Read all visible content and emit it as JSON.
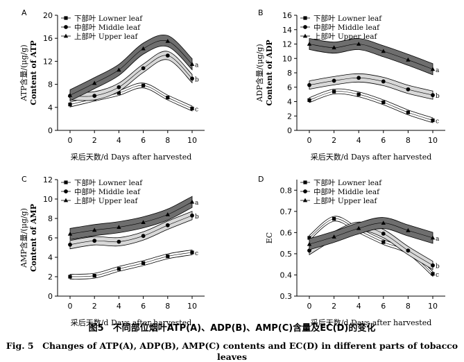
{
  "figure": {
    "caption_cn": "图5　不同部位烟叶ATP(A)、ADP(B)、AMP(C)含量及EC(D)的变化",
    "caption_en": "Fig. 5　Changes of ATP(A), ADP(B), AMP(C) contents and EC(D) in different parts of tobacco leaves"
  },
  "chart_data": [
    {
      "type": "line",
      "panel": "A",
      "xlabel": "采后天数/d Days after harvested",
      "ylabel": [
        "ATP含量/(μg/g)",
        "Content of ATP"
      ],
      "x": [
        0,
        2,
        4,
        6,
        8,
        10
      ],
      "xticks": [
        "0",
        "2",
        "4",
        "6",
        "8",
        "10"
      ],
      "ylim": [
        0,
        20
      ],
      "yticks": [
        "0",
        "4",
        "8",
        "12",
        "16",
        "20"
      ],
      "grid": false,
      "legend_position": "top-left",
      "series": [
        {
          "name": "下部叶 Lowner leaf",
          "marker": "square",
          "label": "c",
          "color": "#ffffff",
          "values": [
            4.5,
            5.5,
            6.5,
            7.8,
            5.7,
            3.8
          ]
        },
        {
          "name": "中部叶 Middle leaf",
          "marker": "circle",
          "label": "b",
          "color": "#d8d8d8",
          "values": [
            6.0,
            6.0,
            7.5,
            10.8,
            13.0,
            9.0
          ]
        },
        {
          "name": "上部叶 Upper leaf",
          "marker": "triangle",
          "label": "a",
          "color": "#6e6e6e",
          "values": [
            6.1,
            8.2,
            10.5,
            14.2,
            15.5,
            11.5
          ]
        }
      ]
    },
    {
      "type": "line",
      "panel": "B",
      "xlabel": "采后天数/d Days after harvested",
      "ylabel": [
        "ADP含量/(μg/g)",
        "Content of ADP"
      ],
      "x": [
        0,
        2,
        4,
        6,
        8,
        10
      ],
      "xticks": [
        "0",
        "2",
        "4",
        "6",
        "8",
        "10"
      ],
      "ylim": [
        0,
        16
      ],
      "yticks": [
        "0",
        "2",
        "4",
        "6",
        "8",
        "10",
        "12",
        "14",
        "16"
      ],
      "grid": false,
      "legend_position": "top-left",
      "series": [
        {
          "name": "下部叶 Lowner leaf",
          "marker": "square",
          "label": "c",
          "color": "#ffffff",
          "values": [
            4.2,
            5.4,
            5.0,
            3.9,
            2.5,
            1.4
          ]
        },
        {
          "name": "中部叶 Middle leaf",
          "marker": "circle",
          "label": "b",
          "color": "#d8d8d8",
          "values": [
            6.3,
            6.9,
            7.3,
            6.8,
            5.7,
            4.9
          ]
        },
        {
          "name": "上部叶 Upper leaf",
          "marker": "triangle",
          "label": "a",
          "color": "#6e6e6e",
          "values": [
            12.0,
            11.5,
            12.0,
            11.0,
            9.8,
            8.5
          ]
        }
      ]
    },
    {
      "type": "line",
      "panel": "C",
      "xlabel": "采后天数/d Days after harvested",
      "ylabel": [
        "AMP含量/(μg/g)",
        "Content of AMP"
      ],
      "x": [
        0,
        2,
        4,
        6,
        8,
        10
      ],
      "xticks": [
        "0",
        "2",
        "4",
        "6",
        "8",
        "10"
      ],
      "ylim": [
        0,
        12
      ],
      "yticks": [
        "0",
        "2",
        "4",
        "6",
        "8",
        "10",
        "12"
      ],
      "grid": false,
      "legend_position": "top-left",
      "series": [
        {
          "name": "下部叶 Lowner leaf",
          "marker": "square",
          "label": "c",
          "color": "#ffffff",
          "values": [
            2.0,
            2.1,
            2.8,
            3.4,
            4.1,
            4.5
          ]
        },
        {
          "name": "中部叶 Middle leaf",
          "marker": "circle",
          "label": "b",
          "color": "#d8d8d8",
          "values": [
            5.3,
            5.7,
            5.6,
            6.2,
            7.3,
            8.3
          ]
        },
        {
          "name": "上部叶 Upper leaf",
          "marker": "triangle",
          "label": "a",
          "color": "#6e6e6e",
          "values": [
            6.4,
            6.8,
            7.1,
            7.6,
            8.4,
            9.7
          ]
        }
      ]
    },
    {
      "type": "line",
      "panel": "D",
      "xlabel": "采后天数/d Days after harvested",
      "ylabel": [
        "EC"
      ],
      "x": [
        0,
        2,
        4,
        6,
        8,
        10
      ],
      "xticks": [
        "0",
        "2",
        "4",
        "6",
        "8",
        "10"
      ],
      "ylim": [
        0.3,
        0.85
      ],
      "yticks": [
        "0.3",
        "0.4",
        "0.5",
        "0.6",
        "0.7",
        "0.8"
      ],
      "grid": false,
      "legend_position": "top-left",
      "series": [
        {
          "name": "下部叶 Lowner leaf",
          "marker": "square",
          "label": "c",
          "color": "#ffffff",
          "values": [
            0.575,
            0.665,
            0.61,
            0.555,
            0.51,
            0.405
          ]
        },
        {
          "name": "中部叶 Middle leaf",
          "marker": "circle",
          "label": "b",
          "color": "#d8d8d8",
          "values": [
            0.515,
            0.585,
            0.63,
            0.595,
            0.515,
            0.445
          ]
        },
        {
          "name": "上部叶 Upper leaf",
          "marker": "triangle",
          "label": "a",
          "color": "#6e6e6e",
          "values": [
            0.545,
            0.58,
            0.62,
            0.645,
            0.61,
            0.575
          ]
        }
      ]
    }
  ]
}
